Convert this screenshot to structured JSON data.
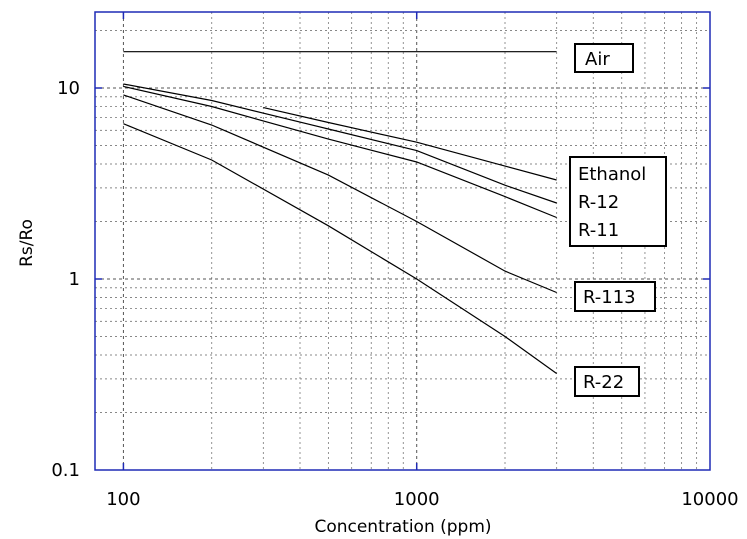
{
  "chart_data": {
    "type": "line",
    "xlabel": "Concentration (ppm)",
    "ylabel": "Rs/Ro",
    "xscale": "log",
    "yscale": "log",
    "xlim": [
      80,
      10000
    ],
    "ylim": [
      0.1,
      25
    ],
    "grid": true,
    "x_ticks": [
      {
        "value": 100,
        "label": "100"
      },
      {
        "value": 1000,
        "label": "1000"
      },
      {
        "value": 10000,
        "label": "10000"
      }
    ],
    "y_ticks": [
      {
        "value": 0.1,
        "label": "0.1"
      },
      {
        "value": 1,
        "label": "1"
      },
      {
        "value": 10,
        "label": "10"
      }
    ],
    "series": [
      {
        "label": "Air",
        "points": [
          [
            100,
            15.5
          ],
          [
            3000,
            15.5
          ]
        ]
      },
      {
        "label": "Ethanol",
        "points": [
          [
            300,
            7.9
          ],
          [
            500,
            6.6
          ],
          [
            1000,
            5.2
          ],
          [
            2000,
            3.9
          ],
          [
            3000,
            3.3
          ]
        ]
      },
      {
        "label": "R-12",
        "points": [
          [
            100,
            10.5
          ],
          [
            200,
            8.6
          ],
          [
            500,
            6.1
          ],
          [
            1000,
            4.7
          ],
          [
            2000,
            3.1
          ],
          [
            3000,
            2.5
          ]
        ]
      },
      {
        "label": "R-11",
        "points": [
          [
            100,
            10.2
          ],
          [
            200,
            8.0
          ],
          [
            500,
            5.4
          ],
          [
            1000,
            4.1
          ],
          [
            2000,
            2.7
          ],
          [
            3000,
            2.1
          ]
        ]
      },
      {
        "label": "R-113",
        "points": [
          [
            100,
            9.2
          ],
          [
            200,
            6.4
          ],
          [
            500,
            3.5
          ],
          [
            1000,
            2.0
          ],
          [
            2000,
            1.1
          ],
          [
            3000,
            0.85
          ]
        ]
      },
      {
        "label": "R-22",
        "points": [
          [
            100,
            6.5
          ],
          [
            200,
            4.2
          ],
          [
            500,
            1.9
          ],
          [
            1000,
            1.0
          ],
          [
            2000,
            0.5
          ],
          [
            3000,
            0.32
          ]
        ]
      }
    ]
  },
  "labels": {
    "air": "Air",
    "ethanol": "Ethanol",
    "r12": "R-12",
    "r11": "R-11",
    "r113": "R-113",
    "r22": "R-22"
  }
}
